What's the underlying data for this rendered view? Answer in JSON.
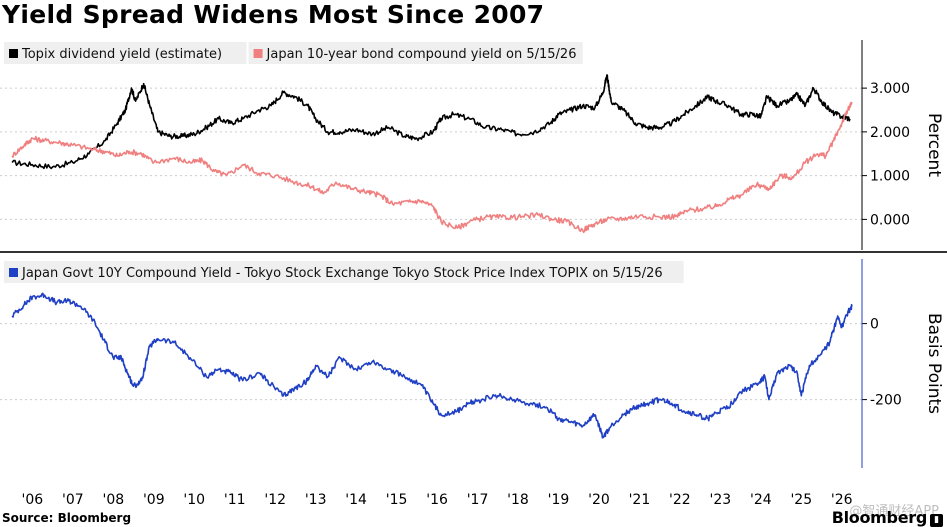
{
  "title": "Yield Spread Widens Most Since 2007",
  "source": "Source: Bloomberg",
  "brand": "Bloomberg",
  "watermark": "@智通财经APP",
  "chart_data": [
    {
      "type": "line",
      "ylabel": "Percent",
      "ylim": [
        -0.7,
        4.1
      ],
      "yticks": [
        0.0,
        1.0,
        2.0,
        3.0
      ],
      "ytick_labels": [
        "0.000",
        "1.000",
        "2.000",
        "3.000"
      ],
      "grid": true,
      "legend_position": "top-left",
      "series": [
        {
          "name": "Topix dividend yield (estimate)",
          "color": "#000000",
          "points": [
            [
              2005.5,
              1.3
            ],
            [
              2006.0,
              1.25
            ],
            [
              2006.5,
              1.2
            ],
            [
              2007.0,
              1.3
            ],
            [
              2007.4,
              1.5
            ],
            [
              2007.8,
              1.8
            ],
            [
              2008.1,
              2.2
            ],
            [
              2008.3,
              2.5
            ],
            [
              2008.45,
              3.0
            ],
            [
              2008.55,
              2.7
            ],
            [
              2008.75,
              3.1
            ],
            [
              2008.9,
              2.6
            ],
            [
              2009.1,
              2.0
            ],
            [
              2009.4,
              1.9
            ],
            [
              2009.7,
              1.9
            ],
            [
              2010.0,
              1.95
            ],
            [
              2010.3,
              2.1
            ],
            [
              2010.6,
              2.3
            ],
            [
              2010.9,
              2.2
            ],
            [
              2011.2,
              2.3
            ],
            [
              2011.6,
              2.5
            ],
            [
              2011.9,
              2.6
            ],
            [
              2012.2,
              2.9
            ],
            [
              2012.5,
              2.8
            ],
            [
              2012.8,
              2.6
            ],
            [
              2013.0,
              2.3
            ],
            [
              2013.3,
              2.0
            ],
            [
              2013.6,
              2.0
            ],
            [
              2014.0,
              2.05
            ],
            [
              2014.4,
              1.95
            ],
            [
              2014.8,
              2.1
            ],
            [
              2015.2,
              1.9
            ],
            [
              2015.5,
              1.85
            ],
            [
              2015.9,
              2.0
            ],
            [
              2016.1,
              2.3
            ],
            [
              2016.4,
              2.4
            ],
            [
              2016.8,
              2.3
            ],
            [
              2017.2,
              2.1
            ],
            [
              2017.6,
              2.05
            ],
            [
              2018.0,
              1.95
            ],
            [
              2018.4,
              2.0
            ],
            [
              2018.8,
              2.2
            ],
            [
              2019.0,
              2.4
            ],
            [
              2019.3,
              2.5
            ],
            [
              2019.6,
              2.6
            ],
            [
              2019.9,
              2.55
            ],
            [
              2020.1,
              2.9
            ],
            [
              2020.2,
              3.3
            ],
            [
              2020.3,
              2.7
            ],
            [
              2020.6,
              2.5
            ],
            [
              2020.9,
              2.2
            ],
            [
              2021.2,
              2.1
            ],
            [
              2021.5,
              2.1
            ],
            [
              2021.8,
              2.2
            ],
            [
              2022.1,
              2.4
            ],
            [
              2022.4,
              2.6
            ],
            [
              2022.7,
              2.8
            ],
            [
              2022.9,
              2.7
            ],
            [
              2023.2,
              2.6
            ],
            [
              2023.5,
              2.4
            ],
            [
              2023.8,
              2.4
            ],
            [
              2024.0,
              2.35
            ],
            [
              2024.15,
              2.8
            ],
            [
              2024.4,
              2.6
            ],
            [
              2024.7,
              2.7
            ],
            [
              2024.9,
              2.85
            ],
            [
              2025.1,
              2.6
            ],
            [
              2025.3,
              3.0
            ],
            [
              2025.5,
              2.7
            ],
            [
              2025.75,
              2.45
            ],
            [
              2026.0,
              2.35
            ],
            [
              2026.2,
              2.3
            ]
          ]
        },
        {
          "name": "Japan 10-year bond compound yield on 5/15/26",
          "color": "#f08080",
          "points": [
            [
              2005.5,
              1.45
            ],
            [
              2005.8,
              1.7
            ],
            [
              2006.0,
              1.85
            ],
            [
              2006.3,
              1.8
            ],
            [
              2006.7,
              1.75
            ],
            [
              2007.0,
              1.7
            ],
            [
              2007.5,
              1.6
            ],
            [
              2007.8,
              1.55
            ],
            [
              2008.1,
              1.45
            ],
            [
              2008.4,
              1.55
            ],
            [
              2008.7,
              1.5
            ],
            [
              2009.0,
              1.3
            ],
            [
              2009.5,
              1.4
            ],
            [
              2009.9,
              1.3
            ],
            [
              2010.2,
              1.35
            ],
            [
              2010.5,
              1.1
            ],
            [
              2010.8,
              1.0
            ],
            [
              2011.2,
              1.25
            ],
            [
              2011.6,
              1.05
            ],
            [
              2012.0,
              1.0
            ],
            [
              2012.5,
              0.85
            ],
            [
              2012.9,
              0.75
            ],
            [
              2013.2,
              0.6
            ],
            [
              2013.5,
              0.85
            ],
            [
              2013.9,
              0.7
            ],
            [
              2014.3,
              0.62
            ],
            [
              2014.6,
              0.55
            ],
            [
              2014.9,
              0.35
            ],
            [
              2015.3,
              0.4
            ],
            [
              2015.6,
              0.42
            ],
            [
              2015.9,
              0.3
            ],
            [
              2016.1,
              -0.05
            ],
            [
              2016.5,
              -0.2
            ],
            [
              2016.8,
              -0.05
            ],
            [
              2017.2,
              0.05
            ],
            [
              2017.6,
              0.05
            ],
            [
              2018.0,
              0.05
            ],
            [
              2018.5,
              0.1
            ],
            [
              2018.9,
              0.0
            ],
            [
              2019.2,
              -0.05
            ],
            [
              2019.6,
              -0.25
            ],
            [
              2019.9,
              -0.1
            ],
            [
              2020.2,
              0.0
            ],
            [
              2020.6,
              0.02
            ],
            [
              2021.0,
              0.08
            ],
            [
              2021.5,
              0.05
            ],
            [
              2021.9,
              0.07
            ],
            [
              2022.2,
              0.2
            ],
            [
              2022.6,
              0.25
            ],
            [
              2022.9,
              0.3
            ],
            [
              2023.2,
              0.45
            ],
            [
              2023.5,
              0.55
            ],
            [
              2023.9,
              0.8
            ],
            [
              2024.2,
              0.7
            ],
            [
              2024.5,
              1.0
            ],
            [
              2024.8,
              0.95
            ],
            [
              2025.1,
              1.3
            ],
            [
              2025.4,
              1.5
            ],
            [
              2025.6,
              1.45
            ],
            [
              2025.8,
              1.8
            ],
            [
              2026.0,
              2.2
            ],
            [
              2026.15,
              2.5
            ],
            [
              2026.25,
              2.65
            ]
          ]
        }
      ]
    },
    {
      "type": "line",
      "ylabel": "Basis Points",
      "ylim": [
        -380,
        170
      ],
      "yticks": [
        0,
        -200
      ],
      "ytick_labels": [
        "0",
        "-200"
      ],
      "grid": true,
      "legend_position": "top-left",
      "series": [
        {
          "name": "Japan Govt 10Y Compound Yield - Tokyo Stock Exchange Tokyo Stock Price Index TOPIX on 5/15/26",
          "color": "#1f3fc4",
          "points": [
            [
              2005.5,
              20
            ],
            [
              2005.8,
              50
            ],
            [
              2006.0,
              70
            ],
            [
              2006.3,
              75
            ],
            [
              2006.6,
              55
            ],
            [
              2006.9,
              60
            ],
            [
              2007.2,
              45
            ],
            [
              2007.5,
              10
            ],
            [
              2007.8,
              -50
            ],
            [
              2008.0,
              -90
            ],
            [
              2008.2,
              -90
            ],
            [
              2008.35,
              -130
            ],
            [
              2008.5,
              -165
            ],
            [
              2008.7,
              -150
            ],
            [
              2008.9,
              -60
            ],
            [
              2009.1,
              -40
            ],
            [
              2009.5,
              -50
            ],
            [
              2009.9,
              -90
            ],
            [
              2010.3,
              -140
            ],
            [
              2010.6,
              -120
            ],
            [
              2010.9,
              -130
            ],
            [
              2011.2,
              -150
            ],
            [
              2011.6,
              -130
            ],
            [
              2011.9,
              -160
            ],
            [
              2012.2,
              -190
            ],
            [
              2012.5,
              -170
            ],
            [
              2012.8,
              -150
            ],
            [
              2013.0,
              -110
            ],
            [
              2013.3,
              -140
            ],
            [
              2013.6,
              -90
            ],
            [
              2014.0,
              -120
            ],
            [
              2014.4,
              -100
            ],
            [
              2014.8,
              -120
            ],
            [
              2015.2,
              -140
            ],
            [
              2015.6,
              -160
            ],
            [
              2015.9,
              -210
            ],
            [
              2016.1,
              -240
            ],
            [
              2016.5,
              -230
            ],
            [
              2016.8,
              -210
            ],
            [
              2017.1,
              -200
            ],
            [
              2017.5,
              -190
            ],
            [
              2017.9,
              -200
            ],
            [
              2018.3,
              -210
            ],
            [
              2018.7,
              -220
            ],
            [
              2019.0,
              -250
            ],
            [
              2019.3,
              -260
            ],
            [
              2019.6,
              -270
            ],
            [
              2019.9,
              -240
            ],
            [
              2020.1,
              -300
            ],
            [
              2020.3,
              -270
            ],
            [
              2020.6,
              -240
            ],
            [
              2020.9,
              -220
            ],
            [
              2021.2,
              -210
            ],
            [
              2021.5,
              -200
            ],
            [
              2021.8,
              -210
            ],
            [
              2022.1,
              -230
            ],
            [
              2022.4,
              -240
            ],
            [
              2022.7,
              -250
            ],
            [
              2022.9,
              -235
            ],
            [
              2023.2,
              -220
            ],
            [
              2023.5,
              -180
            ],
            [
              2023.9,
              -160
            ],
            [
              2024.1,
              -140
            ],
            [
              2024.2,
              -200
            ],
            [
              2024.4,
              -130
            ],
            [
              2024.7,
              -110
            ],
            [
              2024.9,
              -130
            ],
            [
              2025.0,
              -190
            ],
            [
              2025.2,
              -110
            ],
            [
              2025.5,
              -80
            ],
            [
              2025.7,
              -50
            ],
            [
              2025.9,
              20
            ],
            [
              2026.0,
              -10
            ],
            [
              2026.15,
              30
            ],
            [
              2026.25,
              45
            ]
          ]
        }
      ]
    }
  ],
  "x_axis": {
    "range": [
      2005.2,
      2026.5
    ],
    "tick_labels": [
      "'06",
      "'07",
      "'08",
      "'09",
      "'10",
      "'11",
      "'12",
      "'13",
      "'14",
      "'15",
      "'16",
      "'17",
      "'18",
      "'19",
      "'20",
      "'21",
      "'22",
      "'23",
      "'24",
      "'25",
      "'26"
    ],
    "tick_values": [
      2006,
      2007,
      2008,
      2009,
      2010,
      2011,
      2012,
      2013,
      2014,
      2015,
      2016,
      2017,
      2018,
      2019,
      2020,
      2021,
      2022,
      2023,
      2024,
      2025,
      2026
    ]
  }
}
